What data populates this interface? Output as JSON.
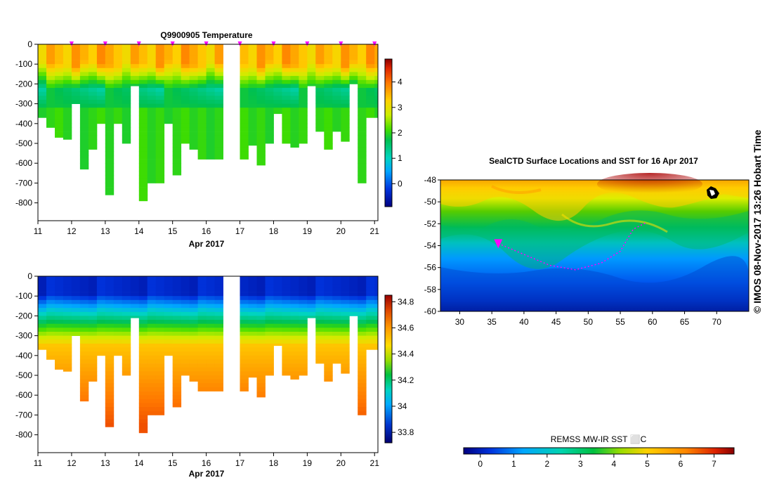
{
  "chart_data": [
    {
      "type": "heatmap",
      "name": "temperature-section",
      "title": "Q9900905  Temperature",
      "xlabel": "Apr 2017",
      "x_ticks": [
        "11",
        "12",
        "13",
        "14",
        "15",
        "16",
        "17",
        "18",
        "19",
        "20",
        "21"
      ],
      "xlim": [
        11,
        21.1
      ],
      "y_ticks": [
        0,
        -100,
        -200,
        -300,
        -400,
        -500,
        -600,
        -700,
        -800
      ],
      "ylim": [
        -890,
        0
      ],
      "colorbar": {
        "ticks": [
          0,
          1,
          2,
          3,
          4
        ],
        "range": [
          -0.9,
          4.9
        ]
      },
      "gap_days": [
        16.6,
        17.1
      ],
      "profile_day_step": 0.25,
      "profile_depths_m": [
        370,
        420,
        470,
        480,
        300,
        630,
        530,
        400,
        760,
        400,
        500,
        210,
        790,
        700,
        700,
        400,
        660,
        500,
        530,
        580,
        580,
        580,
        580,
        510,
        610,
        500,
        350,
        500,
        520,
        500,
        210,
        440,
        530,
        440,
        490,
        200,
        700,
        370
      ],
      "marker_days": [
        12,
        13,
        14,
        15,
        16,
        17,
        18,
        19,
        20,
        21
      ]
    },
    {
      "type": "heatmap",
      "name": "salinity-section",
      "title": "",
      "xlabel": "Apr 2017",
      "x_ticks": [
        "11",
        "12",
        "13",
        "14",
        "15",
        "16",
        "17",
        "18",
        "19",
        "20",
        "21"
      ],
      "xlim": [
        11,
        21.1
      ],
      "y_ticks": [
        0,
        -100,
        -200,
        -300,
        -400,
        -500,
        -600,
        -700,
        -800
      ],
      "ylim": [
        -890,
        0
      ],
      "colorbar": {
        "ticks": [
          33.8,
          34,
          34.2,
          34.4,
          34.6,
          34.8
        ],
        "range": [
          33.72,
          34.85
        ]
      },
      "gap_days": [
        16.6,
        17.1
      ],
      "profile_day_step": 0.25,
      "profile_depths_m": [
        370,
        420,
        470,
        480,
        300,
        630,
        530,
        400,
        760,
        400,
        500,
        210,
        790,
        700,
        700,
        400,
        660,
        500,
        530,
        580,
        580,
        580,
        580,
        510,
        610,
        500,
        350,
        500,
        520,
        500,
        210,
        440,
        530,
        440,
        490,
        200,
        700,
        370
      ]
    },
    {
      "type": "heatmap",
      "name": "sst-map",
      "title": "SealCTD Surface Locations and SST for 16 Apr 2017",
      "x_ticks": [
        30,
        35,
        40,
        45,
        50,
        55,
        60,
        65,
        70
      ],
      "xlim": [
        27,
        75
      ],
      "y_ticks": [
        -48,
        -50,
        -52,
        -54,
        -56,
        -58,
        -60
      ],
      "ylim": [
        -60,
        -48
      ],
      "track_lonlat": [
        [
          36,
          -53.8
        ],
        [
          40,
          -54.8
        ],
        [
          44,
          -55.8
        ],
        [
          48,
          -56.2
        ],
        [
          52,
          -55.6
        ],
        [
          55,
          -54.5
        ],
        [
          57,
          -52.5
        ],
        [
          59,
          -51.9
        ]
      ],
      "current_position": [
        36,
        -53.8
      ],
      "colorbar_label": "REMSS MW-IR SST ⬜C",
      "colorbar": {
        "ticks": [
          0,
          1,
          2,
          3,
          4,
          5,
          6,
          7
        ],
        "range": [
          -0.5,
          7.6
        ]
      }
    }
  ],
  "credit": "©  IMOS 08-Nov-2017 13:26 Hobart Time",
  "colors": {
    "marker": "#ff00ff",
    "track": "#ff00ff",
    "axes": "#000000",
    "background": "#ffffff"
  }
}
